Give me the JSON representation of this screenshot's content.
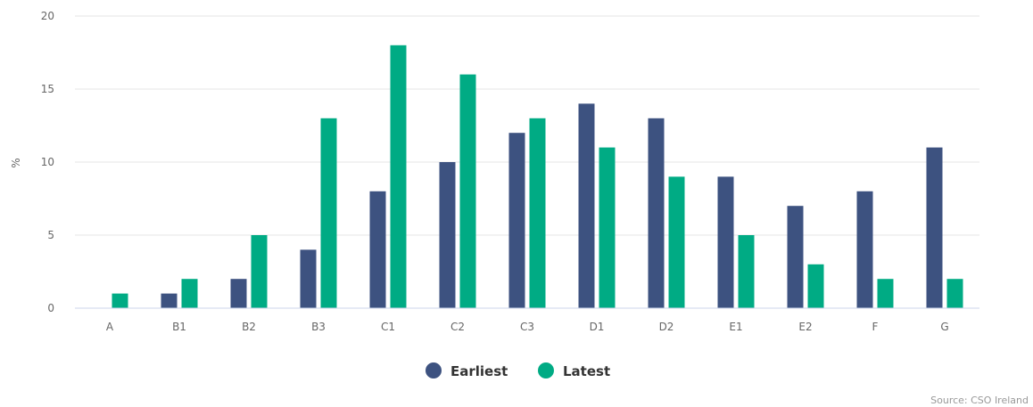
{
  "chart_data": {
    "type": "bar",
    "categories": [
      "A",
      "B1",
      "B2",
      "B3",
      "C1",
      "C2",
      "C3",
      "D1",
      "D2",
      "E1",
      "E2",
      "F",
      "G"
    ],
    "series": [
      {
        "name": "Earliest",
        "color": "#3d5280",
        "values": [
          0,
          1,
          2,
          4,
          8,
          10,
          12,
          14,
          13,
          9,
          7,
          8,
          11
        ]
      },
      {
        "name": "Latest",
        "color": "#00ab84",
        "values": [
          1,
          2,
          5,
          13,
          18,
          16,
          13,
          11,
          9,
          5,
          3,
          2,
          2
        ]
      }
    ],
    "ylabel": "%",
    "ylim": [
      0,
      20
    ],
    "yticks": [
      0,
      5,
      10,
      15,
      20
    ],
    "grid": true,
    "legend_position": "bottom-center"
  },
  "credit": "Source: CSO Ireland"
}
